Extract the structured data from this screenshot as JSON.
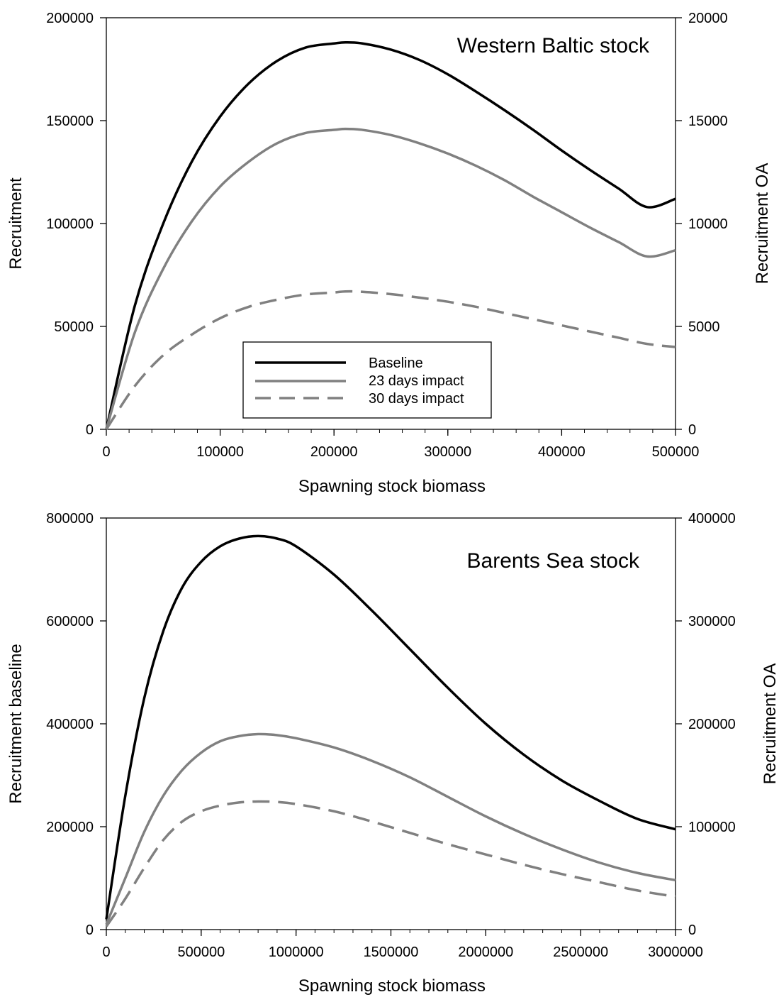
{
  "chart_data": [
    {
      "type": "line",
      "title": "Western Baltic stock",
      "xlabel": "Spawning stock biomass",
      "ylabel": "Recruitment",
      "ylabel_right": "Recruitment OA",
      "xlim": [
        0,
        500000
      ],
      "ylim": [
        0,
        200000
      ],
      "ylim_right": [
        0,
        20000
      ],
      "x_ticks": [
        "0",
        "100000",
        "200000",
        "300000",
        "400000",
        "500000"
      ],
      "y_ticks": [
        "0",
        "50000",
        "100000",
        "150000",
        "200000"
      ],
      "y_ticks_right": [
        "0",
        "5000",
        "10000",
        "15000",
        "20000"
      ],
      "legend": {
        "placement": "bottom-center",
        "entries": [
          "Baseline",
          "23 days impact",
          "30 days impact"
        ]
      },
      "grid": false,
      "x": [
        0,
        25000,
        50000,
        75000,
        100000,
        125000,
        150000,
        175000,
        200000,
        210000,
        225000,
        250000,
        275000,
        300000,
        325000,
        350000,
        375000,
        400000,
        425000,
        450000,
        475000,
        500000
      ],
      "series": [
        {
          "name": "Baseline",
          "axis": "left",
          "style": "solid",
          "color": "#000000",
          "values": [
            0,
            60000,
            100000,
            130000,
            152000,
            168000,
            179000,
            185500,
            187500,
            188000,
            187500,
            184500,
            179500,
            172500,
            164000,
            155000,
            145500,
            135500,
            126000,
            117000,
            108000,
            112000
          ]
        },
        {
          "name": "23 days impact",
          "axis": "right",
          "style": "solid",
          "color": "#808080",
          "values": [
            0,
            4700,
            7800,
            10100,
            11800,
            13000,
            13900,
            14400,
            14550,
            14600,
            14550,
            14300,
            13900,
            13400,
            12800,
            12100,
            11300,
            10550,
            9800,
            9100,
            8400,
            8700
          ]
        },
        {
          "name": "30 days impact",
          "axis": "right",
          "style": "dashed",
          "color": "#808080",
          "values": [
            0,
            2100,
            3600,
            4600,
            5400,
            5950,
            6300,
            6550,
            6650,
            6700,
            6680,
            6570,
            6400,
            6200,
            5950,
            5650,
            5350,
            5050,
            4750,
            4450,
            4150,
            4000
          ]
        }
      ]
    },
    {
      "type": "line",
      "title": "Barents Sea stock",
      "xlabel": "Spawning stock biomass",
      "ylabel": "Recruitment baseline",
      "ylabel_right": "Recruitment OA",
      "xlim": [
        0,
        3000000
      ],
      "ylim": [
        0,
        800000
      ],
      "ylim_right": [
        0,
        400000
      ],
      "x_ticks": [
        "0",
        "500000",
        "1000000",
        "1500000",
        "2000000",
        "2500000",
        "3000000"
      ],
      "y_ticks": [
        "0",
        "200000",
        "400000",
        "600000",
        "800000"
      ],
      "y_ticks_right": [
        "0",
        "100000",
        "200000",
        "300000",
        "400000"
      ],
      "grid": false,
      "x": [
        0,
        100000,
        200000,
        300000,
        400000,
        500000,
        600000,
        700000,
        800000,
        900000,
        1000000,
        1200000,
        1400000,
        1600000,
        1800000,
        2000000,
        2200000,
        2400000,
        2600000,
        2800000,
        3000000
      ],
      "series": [
        {
          "name": "Baseline",
          "axis": "left",
          "style": "solid",
          "color": "#000000",
          "values": [
            20000,
            260000,
            450000,
            580000,
            665000,
            715000,
            745000,
            760000,
            765000,
            760000,
            745000,
            690000,
            620000,
            545000,
            470000,
            400000,
            340000,
            290000,
            250000,
            215000,
            195000
          ]
        },
        {
          "name": "23 days impact",
          "axis": "right",
          "style": "solid",
          "color": "#808080",
          "values": [
            5000,
            50000,
            95000,
            130000,
            155000,
            172000,
            183000,
            188000,
            190000,
            189000,
            186000,
            177000,
            164000,
            148000,
            129000,
            110000,
            93000,
            78000,
            65000,
            55000,
            48000
          ]
        },
        {
          "name": "30 days impact",
          "axis": "right",
          "style": "dashed",
          "color": "#808080",
          "values": [
            3000,
            30000,
            60000,
            87000,
            105000,
            115000,
            120500,
            123500,
            124500,
            124000,
            122000,
            115000,
            105000,
            94000,
            83000,
            73000,
            63000,
            54000,
            46000,
            38000,
            32000
          ]
        }
      ]
    }
  ]
}
